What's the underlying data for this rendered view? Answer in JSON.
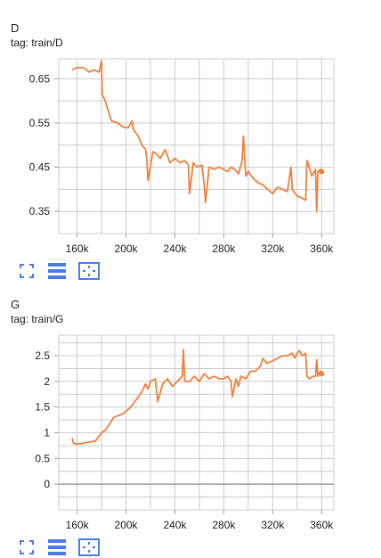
{
  "colors": {
    "series": "#F0803C",
    "grid": "#CCCCCC",
    "axis": "#9E9E9E",
    "icon": "#4A7BE6"
  },
  "icons": [
    "fullscreen-icon",
    "toggle-list-icon",
    "fit-domain-icon"
  ],
  "chart_data": [
    {
      "type": "line",
      "title": "D",
      "subtitle": "tag: train/D",
      "xlim": [
        145000,
        370000
      ],
      "ylim": [
        0.3,
        0.695
      ],
      "x_ticks": [
        160000,
        200000,
        240000,
        280000,
        320000,
        360000
      ],
      "x_tick_labels": [
        "160k",
        "200k",
        "240k",
        "280k",
        "320k",
        "360k"
      ],
      "y_ticks": [
        0.35,
        0.45,
        0.55,
        0.65
      ],
      "y_tick_labels": [
        "0.35",
        "0.45",
        "0.55",
        "0.65"
      ],
      "grid": true,
      "series": [
        {
          "x": [
            156000,
            160000,
            165000,
            170000,
            174000,
            178000,
            180000,
            180500,
            183000,
            188000,
            193000,
            198000,
            202000,
            205000,
            206000,
            210000,
            213000,
            216000,
            217000,
            218000,
            222000,
            225000,
            228000,
            232000,
            236000,
            240000,
            244000,
            248000,
            251000,
            252000,
            255000,
            258000,
            262000,
            264000,
            265000,
            268000,
            272000,
            276000,
            280000,
            283000,
            286000,
            289000,
            292000,
            295000,
            296000,
            298000,
            300000,
            304000,
            308000,
            312000,
            316000,
            320000,
            324000,
            328000,
            332000,
            335000,
            336000,
            340000,
            344000,
            347000,
            348000,
            352000,
            355000,
            356000,
            357000,
            359000,
            360000
          ],
          "y": [
            0.67,
            0.675,
            0.675,
            0.665,
            0.67,
            0.665,
            0.69,
            0.615,
            0.6,
            0.555,
            0.55,
            0.54,
            0.54,
            0.555,
            0.535,
            0.52,
            0.5,
            0.49,
            0.47,
            0.42,
            0.485,
            0.48,
            0.47,
            0.49,
            0.46,
            0.47,
            0.46,
            0.465,
            0.455,
            0.39,
            0.46,
            0.45,
            0.455,
            0.41,
            0.37,
            0.45,
            0.445,
            0.45,
            0.445,
            0.44,
            0.45,
            0.445,
            0.435,
            0.465,
            0.52,
            0.43,
            0.44,
            0.425,
            0.415,
            0.41,
            0.4,
            0.39,
            0.405,
            0.4,
            0.395,
            0.45,
            0.4,
            0.385,
            0.38,
            0.375,
            0.465,
            0.43,
            0.445,
            0.35,
            0.44,
            0.445,
            0.44
          ]
        }
      ]
    },
    {
      "type": "line",
      "title": "G",
      "subtitle": "tag: train/G",
      "xlim": [
        145000,
        370000
      ],
      "ylim": [
        -0.5,
        2.9
      ],
      "x_ticks": [
        160000,
        200000,
        240000,
        280000,
        320000,
        360000
      ],
      "x_tick_labels": [
        "160k",
        "200k",
        "240k",
        "280k",
        "320k",
        "360k"
      ],
      "y_ticks": [
        0,
        0.5,
        1,
        1.5,
        2,
        2.5
      ],
      "y_tick_labels": [
        "0",
        "0.5",
        "1",
        "1.5",
        "2",
        "2.5"
      ],
      "grid": true,
      "series": [
        {
          "x": [
            156000,
            157000,
            160000,
            165000,
            170000,
            175000,
            180000,
            183000,
            186000,
            190000,
            195000,
            198000,
            200000,
            204000,
            207000,
            210000,
            213000,
            216000,
            218000,
            220000,
            224000,
            226000,
            230000,
            234000,
            238000,
            240000,
            242000,
            244000,
            246000,
            247000,
            248000,
            252000,
            256000,
            260000,
            264000,
            268000,
            272000,
            276000,
            280000,
            283000,
            286000,
            287000,
            290000,
            292000,
            294000,
            298000,
            302000,
            306000,
            310000,
            312000,
            315000,
            320000,
            324000,
            328000,
            332000,
            336000,
            338000,
            340000,
            342000,
            344000,
            347000,
            348000,
            350000,
            353000,
            355000,
            356000,
            357000,
            359000,
            360000
          ],
          "y": [
            0.9,
            0.8,
            0.78,
            0.8,
            0.82,
            0.84,
            1.0,
            1.05,
            1.15,
            1.3,
            1.35,
            1.38,
            1.42,
            1.5,
            1.6,
            1.7,
            1.8,
            1.95,
            1.85,
            2.0,
            2.05,
            1.6,
            1.95,
            2.05,
            1.9,
            1.95,
            2.0,
            2.05,
            2.1,
            2.62,
            2.0,
            2.0,
            2.1,
            2.0,
            2.15,
            2.05,
            2.1,
            2.05,
            2.05,
            2.1,
            2.0,
            1.7,
            2.05,
            1.9,
            2.1,
            2.05,
            2.2,
            2.2,
            2.3,
            2.45,
            2.35,
            2.4,
            2.45,
            2.5,
            2.5,
            2.55,
            2.45,
            2.55,
            2.6,
            2.5,
            2.55,
            2.1,
            2.05,
            2.1,
            2.1,
            2.42,
            2.1,
            2.2,
            2.15
          ]
        }
      ]
    }
  ]
}
